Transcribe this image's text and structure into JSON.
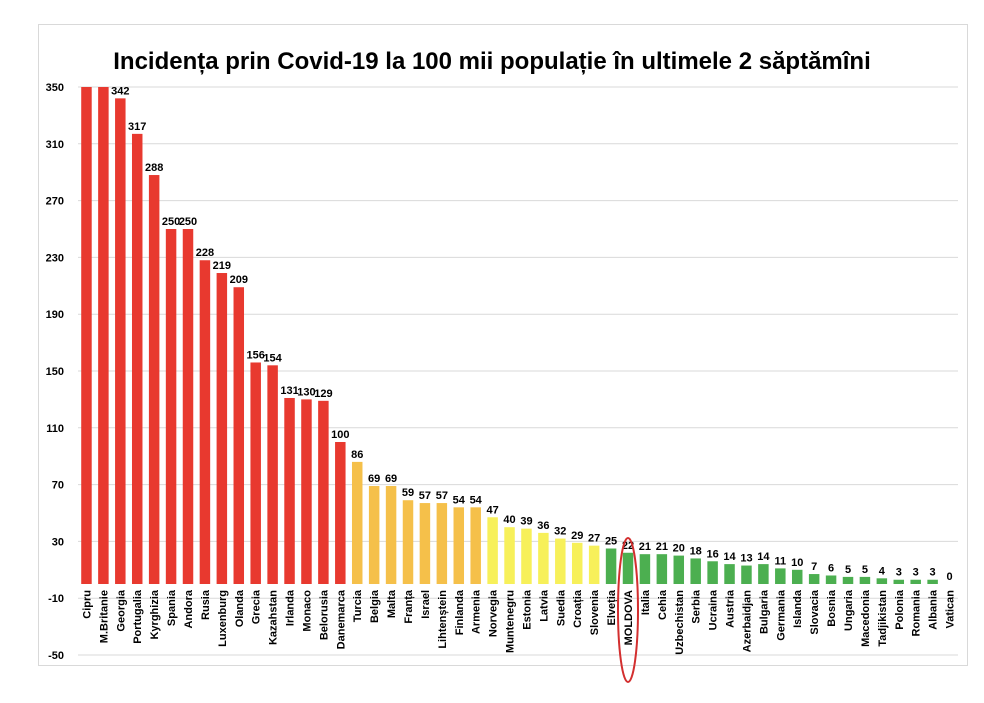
{
  "chart_data": {
    "type": "bar",
    "title": "Incidența prin Covid-19 la 100 mii populație în ultimele 2 săptămîni",
    "xlabel": "",
    "ylabel": "",
    "ylim": [
      -50,
      350
    ],
    "yticks": [
      350,
      310,
      270,
      230,
      190,
      150,
      110,
      70,
      30,
      -10,
      -50
    ],
    "grid": true,
    "legend": "none",
    "categories": [
      "Cipru",
      "M.Britanie",
      "Georgia",
      "Portugalia",
      "Kyrghizia",
      "Spania",
      "Andora",
      "Rusia",
      "Luxenburg",
      "Olanda",
      "Grecia",
      "Kazahstan",
      "Irlanda",
      "Monaco",
      "Belorusia",
      "Danemarca",
      "Turcia",
      "Belgia",
      "Malta",
      "Franța",
      "Israel",
      "Lihtenștein",
      "Finlanda",
      "Armenia",
      "Norvegia",
      "Muntenegru",
      "Estonia",
      "Latvia",
      "Suedia",
      "Croația",
      "Slovenia",
      "Elveția",
      "MOLDOVA",
      "Italia",
      "Cehia",
      "Uzbechistan",
      "Serbia",
      "Ucraina",
      "Austria",
      "Azerbaidjan",
      "Bulgaria",
      "Germania",
      "Islanda",
      "Slovacia",
      "Bosnia",
      "Ungaria",
      "Macedonia",
      "Tadjikistan",
      "Polonia",
      "Romania",
      "Albania",
      "Vatican"
    ],
    "values": [
      350,
      350,
      342,
      317,
      288,
      250,
      250,
      228,
      219,
      209,
      156,
      154,
      131,
      130,
      129,
      100,
      86,
      69,
      69,
      59,
      57,
      57,
      54,
      54,
      47,
      40,
      39,
      36,
      32,
      29,
      27,
      25,
      22,
      21,
      21,
      20,
      18,
      16,
      14,
      13,
      14,
      11,
      10,
      7,
      6,
      5,
      5,
      4,
      3,
      3,
      3,
      0
    ],
    "data_labels": [
      "",
      "",
      "342",
      "317",
      "288",
      "250",
      "250",
      "228",
      "219",
      "209",
      "156",
      "154",
      "131",
      "130",
      "129",
      "100",
      "86",
      "69",
      "69",
      "59",
      "57",
      "57",
      "54",
      "54",
      "47",
      "40",
      "39",
      "36",
      "32",
      "29",
      "27",
      "25",
      "22",
      "21",
      "21",
      "20",
      "18",
      "16",
      "14",
      "13",
      "14",
      "11",
      "10",
      "7",
      "6",
      "5",
      "5",
      "4",
      "3",
      "3",
      "3",
      "0"
    ],
    "colors": {
      "red": "#e8392f",
      "orange": "#f5c04a",
      "yellow": "#f7f05a",
      "green": "#4caf50",
      "highlight": "#d32f2f"
    },
    "color_groups": [
      "red",
      "red",
      "red",
      "red",
      "red",
      "red",
      "red",
      "red",
      "red",
      "red",
      "red",
      "red",
      "red",
      "red",
      "red",
      "red",
      "orange",
      "orange",
      "orange",
      "orange",
      "orange",
      "orange",
      "orange",
      "orange",
      "yellow",
      "yellow",
      "yellow",
      "yellow",
      "yellow",
      "yellow",
      "yellow",
      "green",
      "green",
      "green",
      "green",
      "green",
      "green",
      "green",
      "green",
      "green",
      "green",
      "green",
      "green",
      "green",
      "green",
      "green",
      "green",
      "green",
      "green",
      "green",
      "green",
      "green"
    ],
    "highlight_category": "MOLDOVA"
  }
}
